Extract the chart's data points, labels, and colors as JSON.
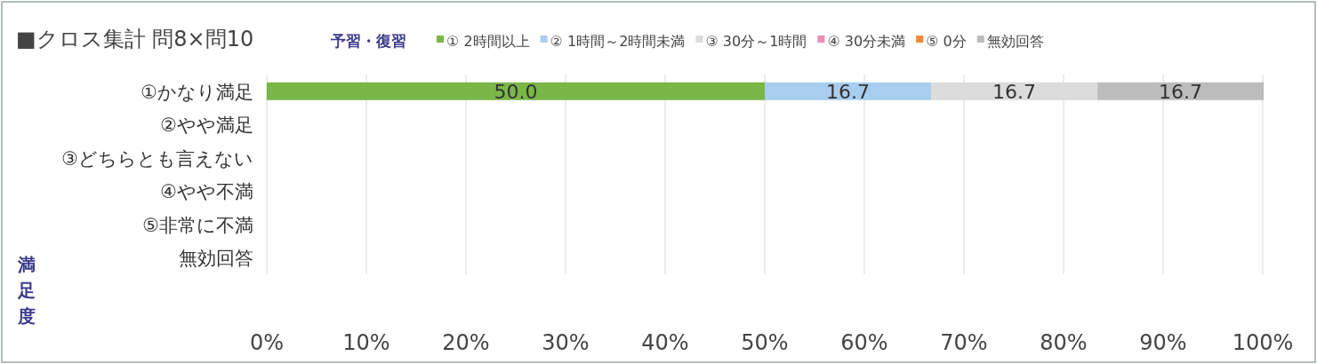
{
  "chart_data": {
    "type": "bar",
    "orientation": "horizontal",
    "stacked": true,
    "title": "■クロス集計 問8×問10",
    "legend_title": "予習・復習",
    "ylabel": "満足度",
    "categories": [
      "①かなり満足",
      "②やや満足",
      "③どちらとも言えない",
      "④やや不満",
      "⑤非常に不満",
      "無効回答"
    ],
    "series": [
      {
        "name": "① 2時間以上",
        "color": "#7ab648",
        "values": [
          50.0,
          null,
          null,
          null,
          null,
          null
        ],
        "value_labels": [
          "50.0",
          null,
          null,
          null,
          null,
          null
        ]
      },
      {
        "name": "② 1時間～2時間未満",
        "color": "#a8cdef",
        "values": [
          16.7,
          null,
          null,
          null,
          null,
          null
        ],
        "value_labels": [
          "16.7",
          null,
          null,
          null,
          null,
          null
        ]
      },
      {
        "name": "③ 30分～1時間",
        "color": "#dcdcdc",
        "values": [
          16.7,
          null,
          null,
          null,
          null,
          null
        ],
        "value_labels": [
          "16.7",
          null,
          null,
          null,
          null,
          null
        ]
      },
      {
        "name": "④ 30分未満",
        "color": "#f08cb4",
        "values": [
          null,
          null,
          null,
          null,
          null,
          null
        ]
      },
      {
        "name": "⑤ 0分",
        "color": "#f5883c",
        "values": [
          null,
          null,
          null,
          null,
          null,
          null
        ]
      },
      {
        "name": "無効回答",
        "color": "#bcbcbc",
        "values": [
          16.7,
          null,
          null,
          null,
          null,
          null
        ],
        "value_labels": [
          "16.7",
          null,
          null,
          null,
          null,
          null
        ]
      }
    ],
    "xlim": [
      0,
      100
    ],
    "xticks": [
      {
        "value": 0,
        "label": "0%"
      },
      {
        "value": 10,
        "label": "10%"
      },
      {
        "value": 20,
        "label": "20%"
      },
      {
        "value": 30,
        "label": "30%"
      },
      {
        "value": 40,
        "label": "40%"
      },
      {
        "value": 50,
        "label": "50%"
      },
      {
        "value": 60,
        "label": "60%"
      },
      {
        "value": 70,
        "label": "70%"
      },
      {
        "value": 80,
        "label": "80%"
      },
      {
        "value": 90,
        "label": "90%"
      },
      {
        "value": 100,
        "label": "100%"
      }
    ],
    "grid": "x",
    "legend": "top"
  }
}
